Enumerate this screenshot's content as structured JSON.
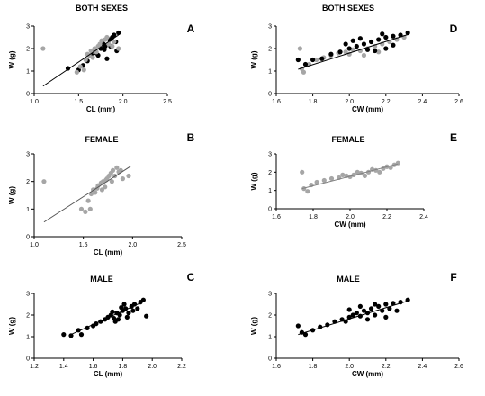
{
  "chart_data": [
    {
      "panel": "A",
      "type": "scatter",
      "title": "BOTH SEXES",
      "xlabel": "CL (mm)",
      "ylabel": "W (g)",
      "xlim": [
        1.0,
        2.5
      ],
      "ylim": [
        0,
        3
      ],
      "xticks": [
        "1.0",
        "1.5",
        "2.0",
        "2.5"
      ],
      "yticks": [
        "0",
        "1",
        "2",
        "3"
      ],
      "series": [
        {
          "color": "#000000",
          "values": [
            [
              1.38,
              1.12
            ],
            [
              1.5,
              1.05
            ],
            [
              1.55,
              1.25
            ],
            [
              1.6,
              1.45
            ],
            [
              1.65,
              1.7
            ],
            [
              1.7,
              1.8
            ],
            [
              1.75,
              2.0
            ],
            [
              1.78,
              2.2
            ],
            [
              1.8,
              2.1
            ],
            [
              1.82,
              1.55
            ],
            [
              1.85,
              2.4
            ],
            [
              1.88,
              2.5
            ],
            [
              1.9,
              2.6
            ],
            [
              1.92,
              2.3
            ],
            [
              1.95,
              2.7
            ],
            [
              1.93,
              1.9
            ],
            [
              1.72,
              1.7
            ],
            [
              1.68,
              1.9
            ],
            [
              1.86,
              2.1
            ],
            [
              1.79,
              1.95
            ]
          ]
        },
        {
          "color": "#a6a6a6",
          "values": [
            [
              1.1,
              2.0
            ],
            [
              1.48,
              0.95
            ],
            [
              1.52,
              1.2
            ],
            [
              1.58,
              1.5
            ],
            [
              1.62,
              1.7
            ],
            [
              1.66,
              1.6
            ],
            [
              1.7,
              1.85
            ],
            [
              1.74,
              2.2
            ],
            [
              1.76,
              2.35
            ],
            [
              1.8,
              2.4
            ],
            [
              1.84,
              2.2
            ],
            [
              1.88,
              2.1
            ],
            [
              1.9,
              2.3
            ],
            [
              1.68,
              2.0
            ],
            [
              1.72,
              2.1
            ],
            [
              1.6,
              1.75
            ],
            [
              1.56,
              1.05
            ],
            [
              1.95,
              2.0
            ],
            [
              1.82,
              2.5
            ],
            [
              1.64,
              1.9
            ]
          ]
        }
      ],
      "fit": {
        "color": "#000000",
        "x": [
          1.1,
          1.95
        ],
        "y": [
          0.33,
          2.6
        ]
      }
    },
    {
      "panel": "B",
      "type": "scatter",
      "title": "FEMALE",
      "xlabel": "CL (mm)",
      "ylabel": "W (g)",
      "xlim": [
        1.0,
        2.5
      ],
      "ylim": [
        0,
        3
      ],
      "xticks": [
        "1.0",
        "1.5",
        "2.0",
        "2.5"
      ],
      "yticks": [
        "0",
        "1",
        "2",
        "3"
      ],
      "series": [
        {
          "color": "#a6a6a6",
          "values": [
            [
              1.1,
              2.0
            ],
            [
              1.48,
              1.0
            ],
            [
              1.52,
              0.9
            ],
            [
              1.55,
              1.3
            ],
            [
              1.58,
              1.55
            ],
            [
              1.6,
              1.7
            ],
            [
              1.62,
              1.6
            ],
            [
              1.65,
              1.85
            ],
            [
              1.68,
              1.95
            ],
            [
              1.7,
              2.0
            ],
            [
              1.72,
              1.8
            ],
            [
              1.74,
              2.1
            ],
            [
              1.76,
              2.2
            ],
            [
              1.78,
              2.3
            ],
            [
              1.8,
              2.4
            ],
            [
              1.82,
              2.2
            ],
            [
              1.84,
              2.5
            ],
            [
              1.86,
              2.35
            ],
            [
              1.88,
              2.4
            ],
            [
              1.9,
              2.1
            ],
            [
              1.96,
              2.2
            ],
            [
              1.64,
              1.75
            ],
            [
              1.69,
              1.7
            ],
            [
              1.57,
              1.0
            ],
            [
              1.73,
              2.05
            ],
            [
              1.79,
              2.0
            ]
          ]
        }
      ],
      "fit": {
        "color": "#555555",
        "x": [
          1.1,
          1.98
        ],
        "y": [
          0.53,
          2.55
        ]
      }
    },
    {
      "panel": "C",
      "type": "scatter",
      "title": "MALE",
      "xlabel": "CL (mm)",
      "ylabel": "W (g)",
      "xlim": [
        1.2,
        2.2
      ],
      "ylim": [
        0,
        3
      ],
      "xticks": [
        "1.2",
        "1.4",
        "1.6",
        "1.8",
        "2.0",
        "2.2"
      ],
      "yticks": [
        "0",
        "1",
        "2",
        "3"
      ],
      "series": [
        {
          "color": "#000000",
          "values": [
            [
              1.4,
              1.1
            ],
            [
              1.45,
              1.05
            ],
            [
              1.5,
              1.3
            ],
            [
              1.52,
              1.1
            ],
            [
              1.56,
              1.4
            ],
            [
              1.6,
              1.5
            ],
            [
              1.62,
              1.6
            ],
            [
              1.65,
              1.7
            ],
            [
              1.68,
              1.8
            ],
            [
              1.7,
              1.9
            ],
            [
              1.72,
              2.0
            ],
            [
              1.74,
              1.85
            ],
            [
              1.76,
              2.1
            ],
            [
              1.78,
              2.0
            ],
            [
              1.8,
              2.2
            ],
            [
              1.82,
              2.3
            ],
            [
              1.84,
              2.1
            ],
            [
              1.86,
              2.4
            ],
            [
              1.88,
              2.5
            ],
            [
              1.9,
              2.3
            ],
            [
              1.92,
              2.6
            ],
            [
              1.94,
              2.7
            ],
            [
              1.96,
              1.95
            ],
            [
              1.75,
              1.7
            ],
            [
              1.79,
              2.35
            ],
            [
              1.83,
              1.9
            ],
            [
              1.87,
              2.2
            ],
            [
              1.73,
              2.15
            ],
            [
              1.81,
              2.5
            ],
            [
              1.77,
              1.8
            ]
          ]
        }
      ],
      "fit": {
        "color": "#000000",
        "x": [
          1.45,
          1.95
        ],
        "y": [
          1.1,
          2.65
        ]
      }
    },
    {
      "panel": "D",
      "type": "scatter",
      "title": "BOTH SEXES",
      "xlabel": "CW (mm)",
      "ylabel": "W (g)",
      "xlim": [
        1.6,
        2.6
      ],
      "ylim": [
        0,
        3
      ],
      "xticks": [
        "1.6",
        "1.8",
        "2.0",
        "2.2",
        "2.4",
        "2.6"
      ],
      "yticks": [
        "0",
        "1",
        "2",
        "3"
      ],
      "series": [
        {
          "color": "#a6a6a6",
          "values": [
            [
              1.73,
              2.0
            ],
            [
              1.74,
              1.1
            ],
            [
              1.75,
              0.95
            ],
            [
              1.78,
              1.3
            ],
            [
              1.82,
              1.5
            ],
            [
              1.86,
              1.6
            ],
            [
              1.9,
              1.7
            ],
            [
              1.94,
              1.8
            ],
            [
              1.98,
              1.85
            ],
            [
              2.02,
              1.95
            ],
            [
              2.06,
              1.9
            ],
            [
              2.1,
              2.0
            ],
            [
              2.14,
              2.1
            ],
            [
              2.18,
              2.2
            ],
            [
              2.22,
              2.3
            ],
            [
              2.26,
              2.4
            ],
            [
              2.3,
              2.5
            ],
            [
              2.0,
              1.75
            ],
            [
              2.08,
              1.7
            ],
            [
              2.16,
              1.85
            ]
          ]
        },
        {
          "color": "#000000",
          "values": [
            [
              1.72,
              1.5
            ],
            [
              1.76,
              1.3
            ],
            [
              1.8,
              1.5
            ],
            [
              1.85,
              1.55
            ],
            [
              1.9,
              1.75
            ],
            [
              1.95,
              1.85
            ],
            [
              2.0,
              2.0
            ],
            [
              2.04,
              2.1
            ],
            [
              2.08,
              2.2
            ],
            [
              2.12,
              2.3
            ],
            [
              2.16,
              2.4
            ],
            [
              2.2,
              2.5
            ],
            [
              2.24,
              2.55
            ],
            [
              2.28,
              2.6
            ],
            [
              2.32,
              2.7
            ],
            [
              2.1,
              1.95
            ],
            [
              2.14,
              1.9
            ],
            [
              2.2,
              2.0
            ],
            [
              2.24,
              2.15
            ],
            [
              2.02,
              2.35
            ],
            [
              2.06,
              2.45
            ],
            [
              1.98,
              2.2
            ],
            [
              2.18,
              2.65
            ]
          ]
        }
      ],
      "fit": {
        "color": "#000000",
        "x": [
          1.72,
          2.32
        ],
        "y": [
          1.08,
          2.62
        ]
      }
    },
    {
      "panel": "E",
      "type": "scatter",
      "title": "FEMALE",
      "xlabel": "CW (mm)",
      "ylabel": "W (g)",
      "xlim": [
        1.6,
        2.4
      ],
      "ylim": [
        0,
        3
      ],
      "xticks": [
        "1.6",
        "1.8",
        "2.0",
        "2.2",
        "2.4"
      ],
      "yticks": [
        "0",
        "1",
        "2",
        "3"
      ],
      "series": [
        {
          "color": "#a6a6a6",
          "values": [
            [
              1.74,
              2.0
            ],
            [
              1.75,
              1.1
            ],
            [
              1.77,
              0.95
            ],
            [
              1.79,
              1.3
            ],
            [
              1.82,
              1.45
            ],
            [
              1.86,
              1.55
            ],
            [
              1.9,
              1.65
            ],
            [
              1.94,
              1.7
            ],
            [
              1.98,
              1.8
            ],
            [
              2.02,
              1.85
            ],
            [
              2.06,
              1.95
            ],
            [
              2.1,
              2.0
            ],
            [
              2.14,
              2.1
            ],
            [
              2.18,
              2.2
            ],
            [
              2.2,
              2.3
            ],
            [
              2.22,
              2.25
            ],
            [
              2.24,
              2.4
            ],
            [
              2.26,
              2.5
            ],
            [
              2.0,
              1.75
            ],
            [
              2.08,
              1.8
            ],
            [
              2.12,
              2.15
            ],
            [
              2.16,
              2.0
            ],
            [
              1.96,
              1.85
            ],
            [
              2.04,
              2.0
            ]
          ]
        }
      ],
      "fit": {
        "color": "#808080",
        "x": [
          1.74,
          2.26
        ],
        "y": [
          1.1,
          2.45
        ]
      }
    },
    {
      "panel": "F",
      "type": "scatter",
      "title": "MALE",
      "xlabel": "CW (mm)",
      "ylabel": "W (g)",
      "xlim": [
        1.6,
        2.6
      ],
      "ylim": [
        0,
        3
      ],
      "xticks": [
        "1.6",
        "1.8",
        "2.0",
        "2.2",
        "2.4",
        "2.6"
      ],
      "yticks": [
        "0",
        "1",
        "2",
        "3"
      ],
      "series": [
        {
          "color": "#000000",
          "values": [
            [
              1.72,
              1.5
            ],
            [
              1.74,
              1.2
            ],
            [
              1.76,
              1.1
            ],
            [
              1.8,
              1.3
            ],
            [
              1.84,
              1.45
            ],
            [
              1.88,
              1.55
            ],
            [
              1.92,
              1.7
            ],
            [
              1.96,
              1.8
            ],
            [
              2.0,
              1.9
            ],
            [
              2.02,
              2.0
            ],
            [
              2.04,
              2.1
            ],
            [
              2.06,
              1.95
            ],
            [
              2.08,
              2.2
            ],
            [
              2.1,
              2.1
            ],
            [
              2.12,
              2.3
            ],
            [
              2.14,
              2.0
            ],
            [
              2.16,
              2.4
            ],
            [
              2.18,
              2.2
            ],
            [
              2.2,
              2.5
            ],
            [
              2.22,
              2.3
            ],
            [
              2.24,
              2.55
            ],
            [
              2.26,
              2.2
            ],
            [
              2.28,
              2.6
            ],
            [
              2.32,
              2.7
            ],
            [
              2.06,
              2.4
            ],
            [
              2.1,
              1.8
            ],
            [
              2.0,
              2.25
            ],
            [
              2.14,
              2.5
            ],
            [
              2.2,
              1.9
            ],
            [
              1.98,
              1.7
            ]
          ]
        }
      ],
      "fit": {
        "color": "#000000",
        "x": [
          1.72,
          2.32
        ],
        "y": [
          1.1,
          2.65
        ]
      }
    }
  ]
}
